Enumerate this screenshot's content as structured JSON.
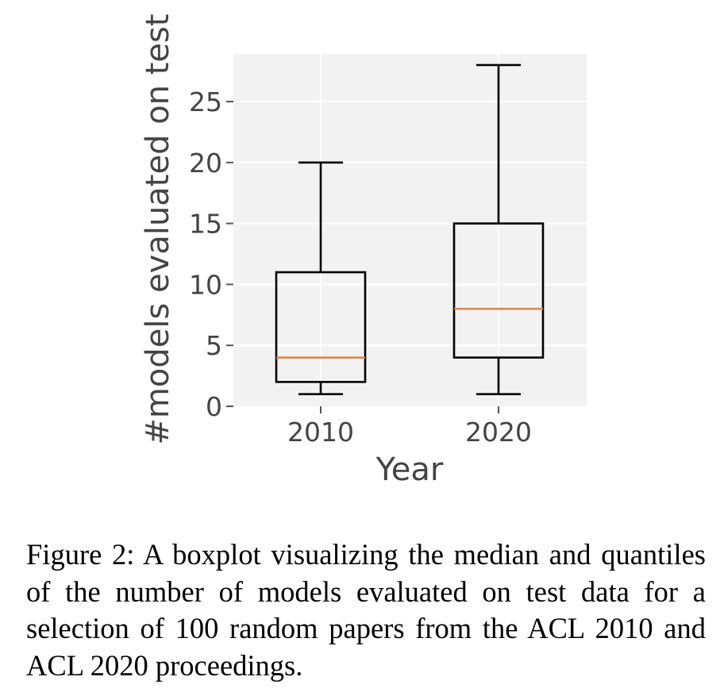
{
  "chart_data": {
    "type": "boxplot",
    "categories": [
      "2010",
      "2020"
    ],
    "boxes": [
      {
        "category": "2010",
        "whisker_low": 1,
        "q1": 2,
        "median": 4,
        "q3": 11,
        "whisker_high": 20
      },
      {
        "category": "2020",
        "whisker_low": 1,
        "q1": 4,
        "median": 8,
        "q3": 15,
        "whisker_high": 28
      }
    ],
    "xlabel": "Year",
    "ylabel": "#models evaluated on test",
    "yticks": [
      0,
      5,
      10,
      15,
      20,
      25
    ],
    "ylim": [
      0,
      28.9
    ],
    "grid": true,
    "style": "ggplot",
    "colors": {
      "plot_background": "#f2f2f2",
      "grid": "#ffffff",
      "box": "#000000",
      "median": "#dd8452",
      "text": "#444444"
    }
  },
  "caption": "Figure 2: A boxplot visualizing the median and quan­tiles of the number of models evaluated on test data for a selection of 100 random papers from the ACL 2010 and ACL 2020 proceedings."
}
